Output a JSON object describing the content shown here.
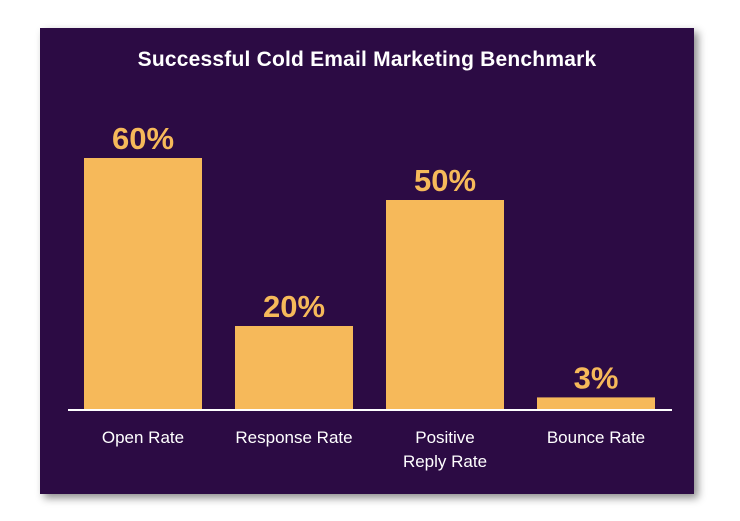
{
  "chart_data": {
    "type": "bar",
    "title": "Successful Cold Email Marketing Benchmark",
    "categories": [
      [
        "Open Rate"
      ],
      [
        "Response Rate"
      ],
      [
        "Positive",
        "Reply Rate"
      ],
      [
        "Bounce Rate"
      ]
    ],
    "values": [
      60,
      20,
      50,
      3
    ],
    "value_labels": [
      "60%",
      "20%",
      "50%",
      "3%"
    ],
    "ylim": [
      0,
      60
    ],
    "grid": false,
    "legend": "none",
    "colors": {
      "background": "#2c0b44",
      "bar": "#f6b95a",
      "value_label": "#f6b95a",
      "axis": "#ffffff",
      "text": "#ffffff"
    }
  }
}
